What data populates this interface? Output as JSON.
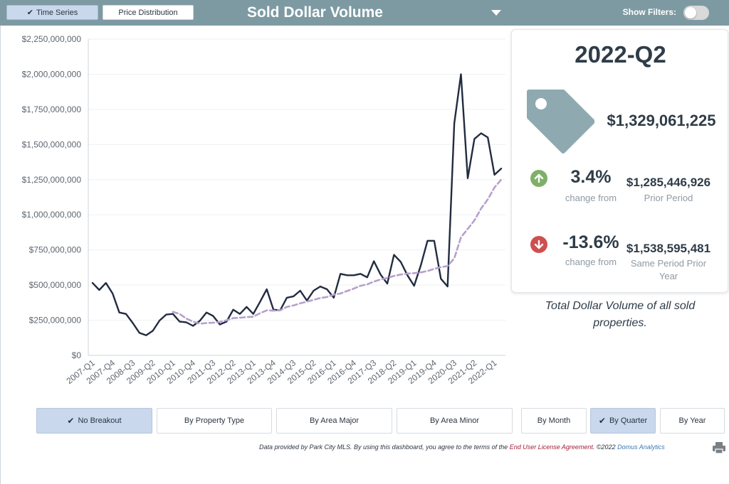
{
  "header": {
    "tabs": [
      {
        "label": "Time Series",
        "active": true
      },
      {
        "label": "Price Distribution",
        "active": false
      }
    ],
    "title": "Sold Dollar Volume",
    "filters_label": "Show Filters:",
    "filters_on": false
  },
  "summary": {
    "period": "2022-Q2",
    "total": "$1,329,061,225",
    "prior_change": {
      "pct": "3.4%",
      "label": "change from",
      "value": "$1,285,446,926",
      "value_label": "Prior Period",
      "direction": "up"
    },
    "same_change": {
      "pct": "-13.6%",
      "label": "change from",
      "value": "$1,538,595,481",
      "value_label": "Same Period Prior Year",
      "direction": "down"
    },
    "caption": "Total Dollar Volume of all sold properties."
  },
  "breakout_buttons": [
    {
      "label": "No Breakout",
      "active": true
    },
    {
      "label": "By Property Type",
      "active": false
    },
    {
      "label": "By Area Major",
      "active": false
    },
    {
      "label": "By Area Minor",
      "active": false
    }
  ],
  "period_buttons": [
    {
      "label": "By Month",
      "active": false
    },
    {
      "label": "By Quarter",
      "active": true
    },
    {
      "label": "By Year",
      "active": false
    }
  ],
  "footer": {
    "disclaimer_prefix": "Data provided by Park City MLS.  By using this dashboard, you agree to the terms of the ",
    "license_link": "End User License Agreement",
    "copyright": ".  ©2022 ",
    "company": "Domus Analytics"
  },
  "colors": {
    "header_bg": "#7d9aa3",
    "active_button": "#c9d8ec",
    "line": "#222c40",
    "trend": "#b7a0cc",
    "tag": "#8fa9b0",
    "up": "#7fb069",
    "down": "#cf4f4f"
  },
  "chart_data": {
    "type": "line",
    "ylim": [
      0,
      2250000000
    ],
    "yticks": [
      0,
      250000000,
      500000000,
      750000000,
      1000000000,
      1250000000,
      1500000000,
      1750000000,
      2000000000,
      2250000000
    ],
    "ytick_labels": [
      "$0",
      "$250,000,000",
      "$500,000,000",
      "$750,000,000",
      "$1,000,000,000",
      "$1,250,000,000",
      "$1,500,000,000",
      "$1,750,000,000",
      "$2,000,000,000",
      "$2,250,000,000"
    ],
    "x": [
      "2007-Q1",
      "2007-Q2",
      "2007-Q3",
      "2007-Q4",
      "2008-Q1",
      "2008-Q2",
      "2008-Q3",
      "2008-Q4",
      "2009-Q1",
      "2009-Q2",
      "2009-Q3",
      "2009-Q4",
      "2010-Q1",
      "2010-Q2",
      "2010-Q3",
      "2010-Q4",
      "2011-Q1",
      "2011-Q2",
      "2011-Q3",
      "2011-Q4",
      "2012-Q1",
      "2012-Q2",
      "2012-Q3",
      "2012-Q4",
      "2013-Q1",
      "2013-Q2",
      "2013-Q3",
      "2013-Q4",
      "2014-Q1",
      "2014-Q2",
      "2014-Q3",
      "2014-Q4",
      "2015-Q1",
      "2015-Q2",
      "2015-Q3",
      "2015-Q4",
      "2016-Q1",
      "2016-Q2",
      "2016-Q3",
      "2016-Q4",
      "2017-Q1",
      "2017-Q2",
      "2017-Q3",
      "2017-Q4",
      "2018-Q1",
      "2018-Q2",
      "2018-Q3",
      "2018-Q4",
      "2019-Q1",
      "2019-Q2",
      "2019-Q3",
      "2019-Q4",
      "2020-Q1",
      "2020-Q2",
      "2020-Q3",
      "2020-Q4",
      "2021-Q1",
      "2021-Q2",
      "2021-Q3",
      "2021-Q4",
      "2022-Q1",
      "2022-Q2"
    ],
    "x_tick_labels": [
      "2007-Q1",
      "2007-Q4",
      "2008-Q3",
      "2009-Q2",
      "2010-Q1",
      "2010-Q4",
      "2011-Q3",
      "2012-Q2",
      "2013-Q1",
      "2013-Q4",
      "2014-Q3",
      "2015-Q2",
      "2016-Q1",
      "2016-Q4",
      "2017-Q3",
      "2018-Q2",
      "2019-Q1",
      "2019-Q4",
      "2020-Q3",
      "2021-Q2",
      "2022-Q1"
    ],
    "x_tick_every": 3,
    "series": [
      {
        "style": "solid",
        "values": [
          515000000,
          465000000,
          515000000,
          440000000,
          305000000,
          295000000,
          230000000,
          160000000,
          143000000,
          175000000,
          248000000,
          290000000,
          295000000,
          240000000,
          235000000,
          210000000,
          245000000,
          305000000,
          280000000,
          220000000,
          240000000,
          325000000,
          295000000,
          345000000,
          295000000,
          380000000,
          470000000,
          325000000,
          320000000,
          410000000,
          420000000,
          460000000,
          390000000,
          460000000,
          490000000,
          470000000,
          410000000,
          580000000,
          570000000,
          570000000,
          580000000,
          555000000,
          670000000,
          575000000,
          510000000,
          715000000,
          665000000,
          570000000,
          495000000,
          640000000,
          815000000,
          815000000,
          545000000,
          490000000,
          1650000000,
          2000000000,
          1260000000,
          1540000000,
          1580000000,
          1550000000,
          1285000000,
          1329000000
        ]
      },
      {
        "style": "dashed",
        "values": [
          null,
          null,
          null,
          null,
          null,
          null,
          null,
          null,
          null,
          null,
          null,
          null,
          310000000,
          295000000,
          262000000,
          240000000,
          225000000,
          230000000,
          232000000,
          238000000,
          250000000,
          265000000,
          268000000,
          272000000,
          275000000,
          300000000,
          320000000,
          318000000,
          320000000,
          345000000,
          355000000,
          370000000,
          382000000,
          395000000,
          408000000,
          415000000,
          432000000,
          440000000,
          458000000,
          475000000,
          495000000,
          505000000,
          525000000,
          540000000,
          550000000,
          565000000,
          575000000,
          582000000,
          585000000,
          590000000,
          600000000,
          615000000,
          628000000,
          635000000,
          690000000,
          840000000,
          900000000,
          960000000,
          1045000000,
          1110000000,
          1195000000,
          1250000000
        ]
      }
    ]
  }
}
